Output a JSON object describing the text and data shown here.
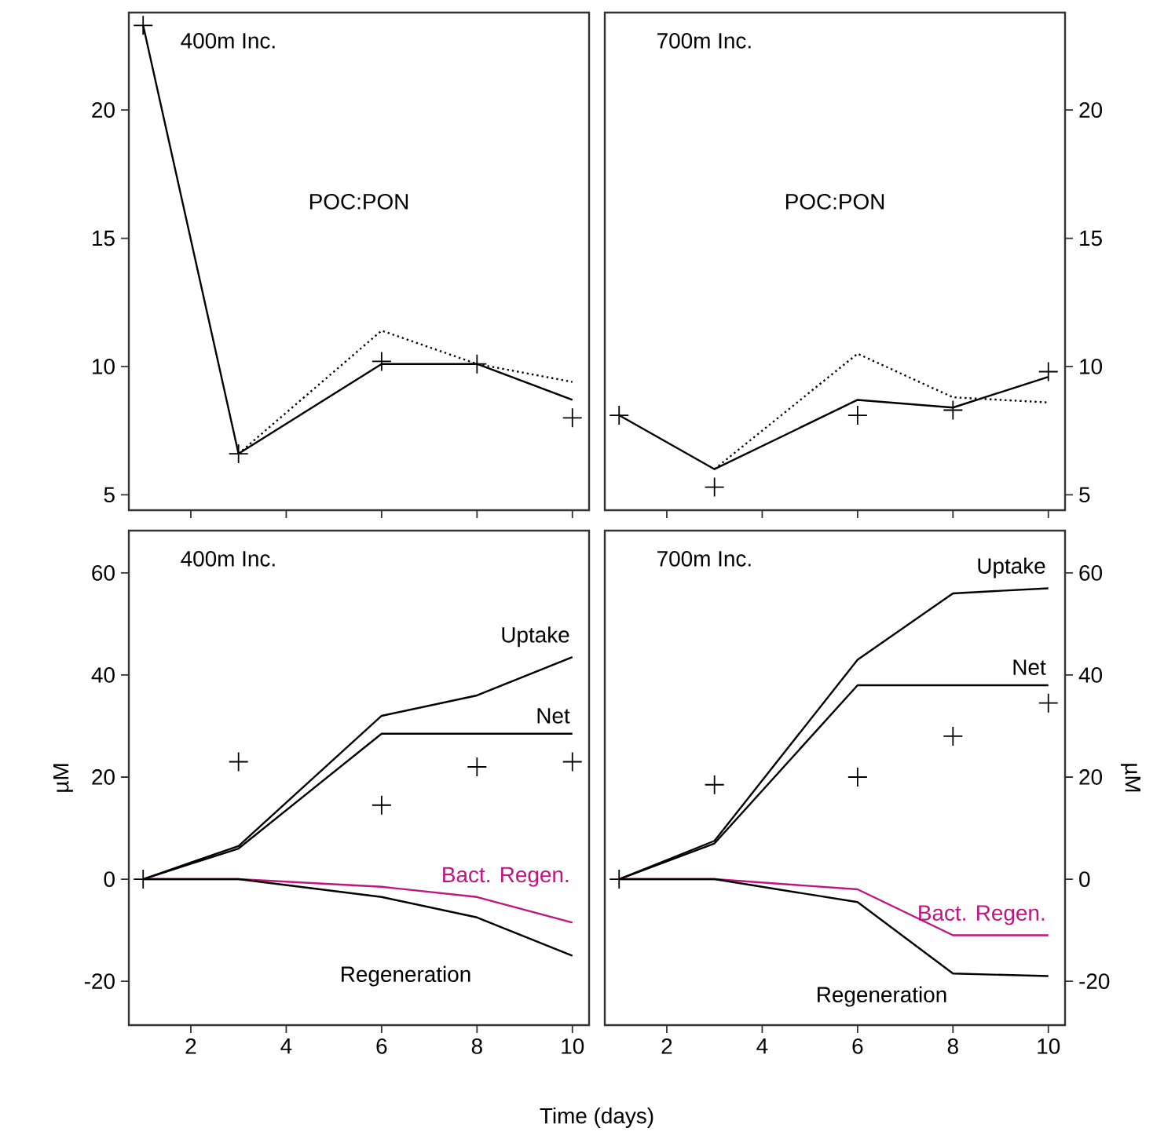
{
  "chart_data": [
    {
      "type": "line",
      "title": "400m Inc.",
      "annotations": [
        "POC:PON"
      ],
      "x": [
        1,
        3,
        6,
        8,
        10
      ],
      "xlim": [
        0.7,
        10.35
      ],
      "ylim": [
        4.4,
        23.8
      ],
      "xticks": [
        2,
        4,
        6,
        8,
        10
      ],
      "yticks": [
        5,
        10,
        15,
        20
      ],
      "tick_labels": "y",
      "series": [
        {
          "type": "scatter",
          "marker": "cross",
          "color": "#000000",
          "values": [
            23.3,
            6.6,
            10.2,
            10.1,
            8.0
          ]
        },
        {
          "type": "line",
          "color": "#000000",
          "values": [
            23.3,
            6.6,
            10.1,
            10.1,
            8.7
          ]
        },
        {
          "type": "line",
          "line_style": "dotted",
          "color": "#000000",
          "x": [
            3,
            6,
            8,
            10
          ],
          "values": [
            6.6,
            11.4,
            10.1,
            9.4
          ]
        }
      ]
    },
    {
      "type": "line",
      "title": "700m Inc.",
      "annotations": [
        "POC:PON"
      ],
      "x": [
        1,
        3,
        6,
        8,
        10
      ],
      "xlim": [
        0.7,
        10.35
      ],
      "ylim": [
        4.4,
        23.8
      ],
      "xticks": [
        2,
        4,
        6,
        8,
        10
      ],
      "yticks": [
        5,
        10,
        15,
        20
      ],
      "tick_labels": "y",
      "series": [
        {
          "type": "scatter",
          "marker": "cross",
          "color": "#000000",
          "values": [
            8.1,
            5.3,
            8.1,
            8.3,
            9.8
          ]
        },
        {
          "type": "line",
          "color": "#000000",
          "values": [
            8.1,
            6.0,
            8.7,
            8.4,
            9.6
          ]
        },
        {
          "type": "line",
          "line_style": "dotted",
          "color": "#000000",
          "x": [
            3,
            6,
            8,
            10
          ],
          "values": [
            6.0,
            10.5,
            8.8,
            8.6
          ]
        }
      ]
    },
    {
      "type": "line",
      "title": "400m Inc.",
      "xlabel": "Time (days)",
      "ylabel": "µM",
      "x": [
        1,
        3,
        6,
        8,
        10
      ],
      "xlim": [
        0.7,
        10.35
      ],
      "ylim": [
        -28.6,
        68.3
      ],
      "xticks": [
        2,
        4,
        6,
        8,
        10
      ],
      "yticks": [
        -20,
        0,
        20,
        40,
        60
      ],
      "series": [
        {
          "name": "Uptake",
          "color": "#000000",
          "values": [
            0,
            6.5,
            32,
            36,
            43.5
          ]
        },
        {
          "name": "Net",
          "color": "#000000",
          "x": [
            1,
            3,
            6,
            10
          ],
          "values": [
            0,
            6,
            28.5,
            28.5
          ]
        },
        {
          "name": "Bact. Regen.",
          "color": "#c0147f",
          "values": [
            0,
            0,
            -1.5,
            -3.5,
            -8.5
          ]
        },
        {
          "name": "Regeneration",
          "color": "#000000",
          "values": [
            0,
            0,
            -3.5,
            -7.5,
            -15
          ]
        },
        {
          "type": "scatter",
          "marker": "cross",
          "color": "#000000",
          "values": [
            0,
            23,
            14.5,
            22,
            23
          ]
        }
      ]
    },
    {
      "type": "line",
      "title": "700m Inc.",
      "ylabel": "µM",
      "x": [
        1,
        3,
        6,
        8,
        10
      ],
      "xlim": [
        0.7,
        10.35
      ],
      "ylim": [
        -28.6,
        68.3
      ],
      "xticks": [
        2,
        4,
        6,
        8,
        10
      ],
      "yticks": [
        -20,
        0,
        20,
        40,
        60
      ],
      "series": [
        {
          "name": "Uptake",
          "color": "#000000",
          "values": [
            0,
            7.5,
            43,
            56,
            57
          ]
        },
        {
          "name": "Net",
          "color": "#000000",
          "x": [
            1,
            3,
            6,
            10
          ],
          "values": [
            0,
            7,
            38,
            38
          ]
        },
        {
          "name": "Bact. Regen.",
          "color": "#c0147f",
          "values": [
            0,
            0,
            -2,
            -11,
            -11
          ]
        },
        {
          "name": "Regeneration",
          "color": "#000000",
          "values": [
            0,
            0,
            -4.5,
            -18.5,
            -19
          ]
        },
        {
          "type": "scatter",
          "marker": "cross",
          "color": "#000000",
          "values": [
            0,
            18.5,
            20,
            28,
            34.5
          ]
        }
      ]
    }
  ]
}
